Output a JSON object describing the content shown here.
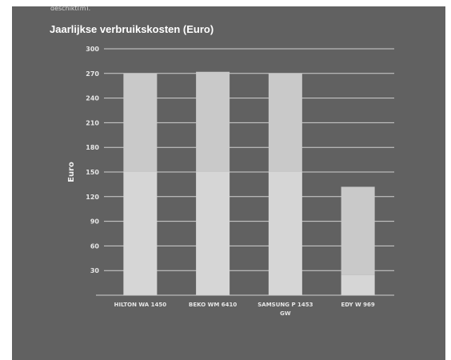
{
  "header": {
    "cut_text": "geschikt(m)."
  },
  "chart_data": {
    "type": "bar",
    "title": "Jaarlijkse verbruikskosten (Euro)",
    "ylabel": "Euro",
    "xlabel": "",
    "categories": [
      [
        "HILTON  WA 1450"
      ],
      [
        "BEKO  WM 6410"
      ],
      [
        "SAMSUNG  P 1453",
        "GW"
      ],
      [
        "EDY  W 969"
      ]
    ],
    "values": [
      270,
      272,
      270,
      132
    ],
    "ylim": [
      0,
      300
    ],
    "yticks": [
      30,
      60,
      90,
      120,
      150,
      180,
      210,
      240,
      270,
      300
    ],
    "grid": true,
    "colors": {
      "background": "#616161",
      "bar_upper": "#c9c9c9",
      "bar_lower": "#d6d6d6",
      "grid": "#d0d0d0",
      "text": "#e6e6e6"
    }
  }
}
